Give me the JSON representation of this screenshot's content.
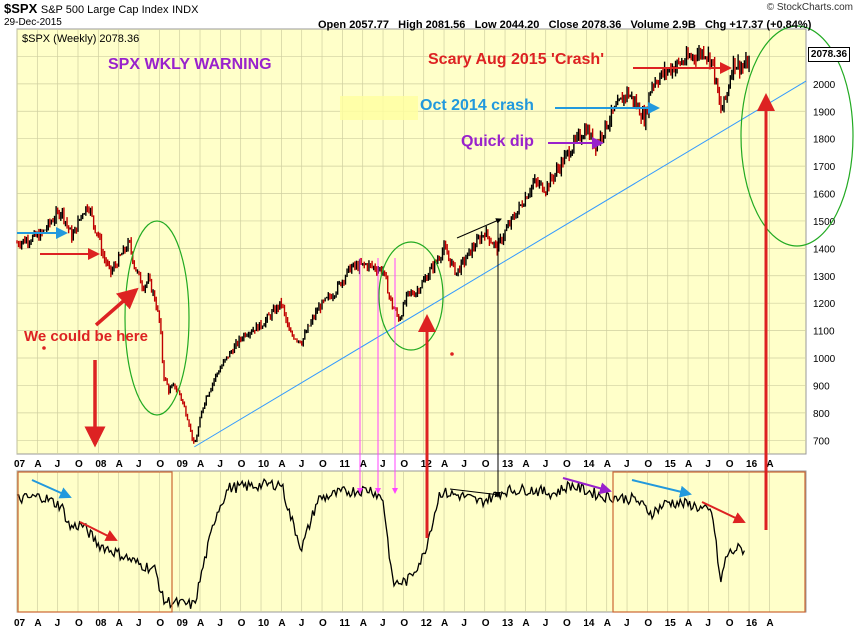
{
  "header": {
    "ticker": "$SPX",
    "description": "S&P 500 Large Cap Index",
    "exchange": "INDX",
    "date": "29-Dec-2015",
    "open_label": "Open",
    "open": "2057.77",
    "high_label": "High",
    "high": "2081.56",
    "low_label": "Low",
    "low": "2044.20",
    "close_label": "Close",
    "close": "2078.36",
    "volume_label": "Volume",
    "volume": "2.9B",
    "chg_label": "Chg",
    "chg": "+17.37 (+0.84%)",
    "legend": "$SPX (Weekly) 2078.36",
    "brand": "© StockCharts.com",
    "last_value": "2078.36"
  },
  "annotations": {
    "warning": "SPX WKLY WARNING",
    "crash2015": "Scary Aug 2015 'Crash'",
    "crash2014": "Oct 2014 crash",
    "dip": "Quick dip",
    "here": "We could be here"
  },
  "colors": {
    "plot_bg": "#ffffc9",
    "bar_up": "#000000",
    "bar_down": "#c00000",
    "trendline": "#3399ff",
    "ellipse": "#22aa22",
    "red_arrow": "#dd2222",
    "blue_arrow": "#2299dd",
    "purple": "#9922cc",
    "magenta": "#ff44ff",
    "box": "#cc6633"
  },
  "chart_data": [
    {
      "type": "line",
      "series": [
        {
          "values": [
            [
              2007.0,
              1420
            ],
            [
              2007.3,
              1450
            ],
            [
              2007.45,
              1510
            ],
            [
              2007.55,
              1540
            ],
            [
              2007.62,
              1480
            ],
            [
              2007.68,
              1440
            ],
            [
              2007.8,
              1530
            ],
            [
              2007.88,
              1560
            ],
            [
              2007.95,
              1480
            ],
            [
              2008.0,
              1450
            ],
            [
              2008.05,
              1380
            ],
            [
              2008.15,
              1310
            ],
            [
              2008.25,
              1360
            ],
            [
              2008.38,
              1420
            ],
            [
              2008.45,
              1330
            ],
            [
              2008.55,
              1260
            ],
            [
              2008.62,
              1285
            ],
            [
              2008.7,
              1210
            ],
            [
              2008.76,
              1120
            ],
            [
              2008.8,
              940
            ],
            [
              2008.87,
              880
            ],
            [
              2008.93,
              900
            ],
            [
              2009.0,
              870
            ],
            [
              2009.1,
              780
            ],
            [
              2009.18,
              676
            ],
            [
              2009.3,
              840
            ],
            [
              2009.45,
              940
            ],
            [
              2009.6,
              1010
            ],
            [
              2009.8,
              1090
            ],
            [
              2010.0,
              1120
            ],
            [
              2010.25,
              1200
            ],
            [
              2010.35,
              1090
            ],
            [
              2010.5,
              1060
            ],
            [
              2010.7,
              1180
            ],
            [
              2010.9,
              1240
            ],
            [
              2011.1,
              1330
            ],
            [
              2011.3,
              1340
            ],
            [
              2011.5,
              1320
            ],
            [
              2011.6,
              1200
            ],
            [
              2011.7,
              1140
            ],
            [
              2011.8,
              1230
            ],
            [
              2011.9,
              1240
            ],
            [
              2012.0,
              1280
            ],
            [
              2012.25,
              1400
            ],
            [
              2012.4,
              1310
            ],
            [
              2012.6,
              1400
            ],
            [
              2012.75,
              1460
            ],
            [
              2012.9,
              1400
            ],
            [
              2013.0,
              1460
            ],
            [
              2013.2,
              1560
            ],
            [
              2013.35,
              1640
            ],
            [
              2013.5,
              1620
            ],
            [
              2013.65,
              1690
            ],
            [
              2013.8,
              1760
            ],
            [
              2014.0,
              1840
            ],
            [
              2014.1,
              1770
            ],
            [
              2014.3,
              1880
            ],
            [
              2014.5,
              1970
            ],
            [
              2014.6,
              1930
            ],
            [
              2014.72,
              1870
            ],
            [
              2014.8,
              2000
            ],
            [
              2015.0,
              2050
            ],
            [
              2015.3,
              2100
            ],
            [
              2015.45,
              2120
            ],
            [
              2015.55,
              2080
            ],
            [
              2015.65,
              1900
            ],
            [
              2015.72,
              1950
            ],
            [
              2015.8,
              2080
            ],
            [
              2015.92,
              2060
            ],
            [
              2016.0,
              2078
            ]
          ]
        },
        {
          "values": [
            [
              2007.0,
              0.8
            ],
            [
              2007.3,
              0.82
            ],
            [
              2007.55,
              0.75
            ],
            [
              2007.65,
              0.6
            ],
            [
              2007.8,
              0.62
            ],
            [
              2008.0,
              0.48
            ],
            [
              2008.3,
              0.4
            ],
            [
              2008.5,
              0.34
            ],
            [
              2008.7,
              0.3
            ],
            [
              2008.8,
              0.08
            ],
            [
              2009.0,
              0.06
            ],
            [
              2009.18,
              0.05
            ],
            [
              2009.3,
              0.35
            ],
            [
              2009.45,
              0.7
            ],
            [
              2009.6,
              0.88
            ],
            [
              2010.0,
              0.9
            ],
            [
              2010.25,
              0.91
            ],
            [
              2010.35,
              0.7
            ],
            [
              2010.5,
              0.45
            ],
            [
              2010.7,
              0.8
            ],
            [
              2011.0,
              0.85
            ],
            [
              2011.35,
              0.87
            ],
            [
              2011.5,
              0.8
            ],
            [
              2011.62,
              0.2
            ],
            [
              2011.8,
              0.22
            ],
            [
              2012.0,
              0.4
            ],
            [
              2012.2,
              0.85
            ],
            [
              2012.5,
              0.82
            ],
            [
              2012.7,
              0.78
            ],
            [
              2013.0,
              0.86
            ],
            [
              2013.3,
              0.87
            ],
            [
              2013.6,
              0.84
            ],
            [
              2013.8,
              0.9
            ],
            [
              2014.0,
              0.86
            ],
            [
              2014.2,
              0.82
            ],
            [
              2014.6,
              0.8
            ],
            [
              2014.8,
              0.7
            ],
            [
              2015.0,
              0.78
            ],
            [
              2015.3,
              0.76
            ],
            [
              2015.55,
              0.7
            ],
            [
              2015.65,
              0.2
            ],
            [
              2015.72,
              0.4
            ],
            [
              2015.85,
              0.45
            ],
            [
              2015.95,
              0.44
            ]
          ]
        }
      ],
      "ylim": [
        650,
        2200
      ],
      "yticks": [
        700,
        800,
        900,
        1000,
        1100,
        1200,
        1300,
        1400,
        1500,
        1600,
        1700,
        1800,
        1900,
        2000,
        2100
      ],
      "xticks": [
        {
          "x": 2007.0,
          "label": "07"
        },
        {
          "x": 2007.25,
          "label": "A"
        },
        {
          "x": 2007.5,
          "label": "J"
        },
        {
          "x": 2007.75,
          "label": "O"
        },
        {
          "x": 2008.0,
          "label": "08"
        },
        {
          "x": 2008.25,
          "label": "A"
        },
        {
          "x": 2008.5,
          "label": "J"
        },
        {
          "x": 2008.75,
          "label": "O"
        },
        {
          "x": 2009.0,
          "label": "09"
        },
        {
          "x": 2009.25,
          "label": "A"
        },
        {
          "x": 2009.5,
          "label": "J"
        },
        {
          "x": 2009.75,
          "label": "O"
        },
        {
          "x": 2010.0,
          "label": "10"
        },
        {
          "x": 2010.25,
          "label": "A"
        },
        {
          "x": 2010.5,
          "label": "J"
        },
        {
          "x": 2010.75,
          "label": "O"
        },
        {
          "x": 2011.0,
          "label": "11"
        },
        {
          "x": 2011.25,
          "label": "A"
        },
        {
          "x": 2011.5,
          "label": "J"
        },
        {
          "x": 2011.75,
          "label": "O"
        },
        {
          "x": 2012.0,
          "label": "12"
        },
        {
          "x": 2012.25,
          "label": "A"
        },
        {
          "x": 2012.5,
          "label": "J"
        },
        {
          "x": 2012.75,
          "label": "O"
        },
        {
          "x": 2013.0,
          "label": "13"
        },
        {
          "x": 2013.25,
          "label": "A"
        },
        {
          "x": 2013.5,
          "label": "J"
        },
        {
          "x": 2013.75,
          "label": "O"
        },
        {
          "x": 2014.0,
          "label": "14"
        },
        {
          "x": 2014.25,
          "label": "A"
        },
        {
          "x": 2014.5,
          "label": "J"
        },
        {
          "x": 2014.75,
          "label": "O"
        },
        {
          "x": 2015.0,
          "label": "15"
        },
        {
          "x": 2015.25,
          "label": "A"
        },
        {
          "x": 2015.5,
          "label": "J"
        },
        {
          "x": 2015.75,
          "label": "O"
        },
        {
          "x": 2016.0,
          "label": "16"
        },
        {
          "x": 2016.25,
          "label": "A"
        }
      ],
      "xlim": [
        2007.0,
        2016.7
      ],
      "grid": true,
      "trendline": [
        [
          2009.18,
          676
        ],
        [
          2016.7,
          2010
        ]
      ]
    }
  ]
}
